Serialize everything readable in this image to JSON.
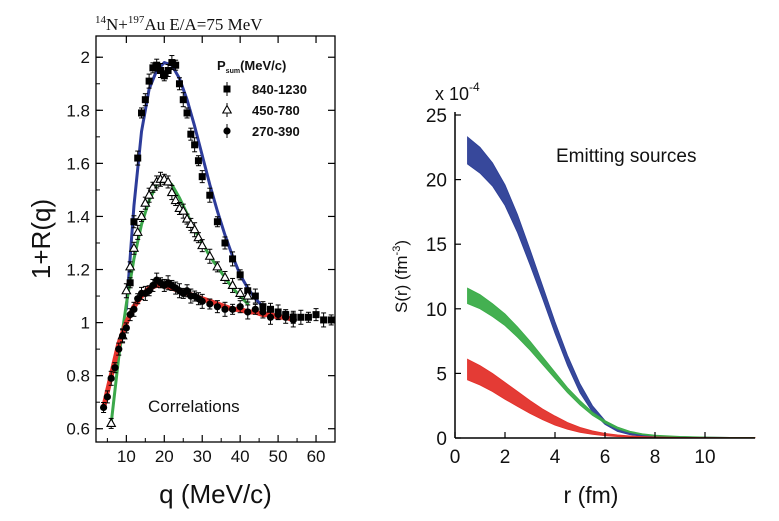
{
  "chart_data": [
    {
      "type": "scatter",
      "panel": "left",
      "title": "14N+197Au E/A=75 MeV",
      "title_parts": {
        "a1": "14",
        "n": "N+",
        "a2": "197",
        "rest": "Au E/A=75 MeV"
      },
      "annotation": "Correlations",
      "xlabel": "q (MeV/c)",
      "ylabel": "1+R(q)",
      "xlim": [
        2,
        65
      ],
      "ylim": [
        0.55,
        2.08
      ],
      "xticks": [
        10,
        20,
        30,
        40,
        50,
        60
      ],
      "yticks": [
        0.6,
        0.8,
        1,
        1.2,
        1.4,
        1.6,
        1.8,
        2
      ],
      "ytick_labels": [
        "0.6",
        "0.8",
        "1",
        "1.2",
        "1.4",
        "1.6",
        "1.8",
        "2"
      ],
      "legend": {
        "title_main": "P",
        "title_sub": "sum",
        "title_rest": "(MeV/c)",
        "position": "top-right"
      },
      "series": [
        {
          "name": "840-1230",
          "marker": "filled-square",
          "fit_color": "#2d3c9a",
          "x": [
            11,
            12,
            13,
            14,
            15,
            16,
            17,
            18,
            19,
            20,
            21,
            22,
            23,
            24,
            25,
            26,
            27,
            28,
            29,
            30,
            32,
            34,
            36,
            38,
            40,
            42,
            44,
            46,
            48,
            50,
            52,
            54,
            56,
            58,
            60,
            62,
            64
          ],
          "y": [
            1.15,
            1.38,
            1.62,
            1.79,
            1.84,
            1.91,
            1.96,
            1.97,
            1.95,
            1.93,
            1.95,
            1.98,
            1.97,
            1.9,
            1.84,
            1.79,
            1.71,
            1.67,
            1.61,
            1.55,
            1.48,
            1.38,
            1.3,
            1.24,
            1.18,
            1.12,
            1.1,
            1.06,
            1.05,
            1.04,
            1.03,
            1.02,
            1.02,
            1.02,
            1.03,
            1.01,
            1.01
          ],
          "fit_x": [
            10,
            12,
            14,
            16,
            18,
            20,
            22,
            24,
            26,
            28,
            30,
            32,
            34,
            36,
            38,
            40,
            42,
            44,
            46
          ],
          "fit_y": [
            1.05,
            1.44,
            1.72,
            1.88,
            1.95,
            1.98,
            1.97,
            1.92,
            1.84,
            1.74,
            1.63,
            1.52,
            1.42,
            1.33,
            1.25,
            1.18,
            1.13,
            1.09,
            1.06
          ]
        },
        {
          "name": "450-780",
          "marker": "open-triangle",
          "fit_color": "#3ba84a",
          "x": [
            6,
            9,
            10,
            11,
            12,
            13,
            14,
            15,
            16,
            17,
            18,
            19,
            20,
            21,
            22,
            23,
            24,
            25,
            26,
            27,
            28,
            29,
            30,
            32,
            34,
            36,
            38,
            40,
            42
          ],
          "y": [
            0.62,
            0.95,
            1.12,
            1.21,
            1.28,
            1.34,
            1.4,
            1.45,
            1.48,
            1.51,
            1.53,
            1.54,
            1.54,
            1.53,
            1.49,
            1.46,
            1.43,
            1.42,
            1.39,
            1.37,
            1.35,
            1.32,
            1.29,
            1.25,
            1.21,
            1.17,
            1.14,
            1.11,
            1.1
          ],
          "fit_x": [
            6,
            8,
            10,
            12,
            14,
            16,
            18,
            20,
            22,
            24,
            26,
            28,
            30,
            32,
            34,
            36,
            38,
            40,
            42
          ],
          "fit_y": [
            0.62,
            0.87,
            1.07,
            1.24,
            1.37,
            1.46,
            1.52,
            1.54,
            1.52,
            1.47,
            1.41,
            1.35,
            1.3,
            1.25,
            1.21,
            1.17,
            1.13,
            1.1,
            1.07
          ]
        },
        {
          "name": "270-390",
          "marker": "filled-circle",
          "fit_color": "#e8322c",
          "x": [
            4,
            5,
            6,
            7,
            8,
            9,
            10,
            11,
            12,
            13,
            14,
            15,
            16,
            17,
            18,
            19,
            20,
            21,
            22,
            23,
            24,
            25,
            26,
            27,
            28,
            29,
            30,
            32,
            34,
            36,
            38,
            40,
            42,
            44,
            46,
            48,
            50,
            52,
            54
          ],
          "y": [
            0.68,
            0.72,
            0.79,
            0.83,
            0.9,
            0.95,
            0.98,
            1.03,
            1.05,
            1.09,
            1.11,
            1.11,
            1.12,
            1.14,
            1.16,
            1.15,
            1.14,
            1.15,
            1.14,
            1.13,
            1.12,
            1.11,
            1.12,
            1.1,
            1.1,
            1.09,
            1.08,
            1.07,
            1.06,
            1.05,
            1.05,
            1.06,
            1.04,
            1.05,
            1.04,
            1.02,
            1.03,
            1.02,
            1.01
          ],
          "fit_x": [
            4,
            6,
            8,
            10,
            12,
            14,
            16,
            18,
            20,
            22,
            24,
            26,
            28,
            30,
            32,
            34,
            36,
            38,
            40,
            42,
            44,
            46,
            48,
            50,
            52,
            54
          ],
          "fit_y": [
            0.68,
            0.8,
            0.92,
            1.0,
            1.06,
            1.1,
            1.13,
            1.14,
            1.14,
            1.13,
            1.12,
            1.11,
            1.1,
            1.09,
            1.08,
            1.07,
            1.06,
            1.05,
            1.05,
            1.04,
            1.04,
            1.03,
            1.03,
            1.02,
            1.02,
            1.01
          ]
        }
      ]
    },
    {
      "type": "area",
      "panel": "right",
      "annotation": "Emitting sources",
      "scale_label": "x 10",
      "scale_exp": "-4",
      "xlabel": "r (fm)",
      "ylabel_main": "S(r) (fm",
      "ylabel_exp": "-3",
      "ylabel_close": ")",
      "xlim": [
        0,
        12
      ],
      "ylim": [
        0,
        25
      ],
      "xticks": [
        0,
        2,
        4,
        6,
        8,
        10
      ],
      "yticks": [
        0,
        5,
        10,
        15,
        20,
        25
      ],
      "series": [
        {
          "name": "840-1230",
          "color": "#2c3e96",
          "r": [
            0.5,
            1,
            1.5,
            2,
            2.5,
            3,
            3.5,
            4,
            4.5,
            5,
            5.5,
            6,
            6.5,
            7,
            7.5,
            8,
            9,
            10,
            11,
            12
          ],
          "upper": [
            23.3,
            22.5,
            21.3,
            19.6,
            17.3,
            14.6,
            11.8,
            9.0,
            6.4,
            4.2,
            2.5,
            1.35,
            0.7,
            0.38,
            0.22,
            0.15,
            0.1,
            0.07,
            0.05,
            0.05
          ],
          "lower": [
            21.2,
            20.5,
            19.5,
            18.0,
            15.9,
            13.4,
            10.8,
            8.1,
            5.6,
            3.5,
            2.0,
            1.05,
            0.5,
            0.25,
            0.13,
            0.08,
            0.05,
            0.03,
            0.02,
            0.02
          ]
        },
        {
          "name": "450-780",
          "color": "#3aac48",
          "r": [
            0.5,
            1,
            1.5,
            2,
            2.5,
            3,
            3.5,
            4,
            4.5,
            5,
            5.5,
            6,
            6.5,
            7,
            7.5,
            8,
            9,
            10,
            11,
            12
          ],
          "upper": [
            11.6,
            11.1,
            10.4,
            9.6,
            8.6,
            7.5,
            6.3,
            5.1,
            3.9,
            2.9,
            2.0,
            1.35,
            0.85,
            0.52,
            0.33,
            0.22,
            0.12,
            0.08,
            0.05,
            0.05
          ],
          "lower": [
            10.4,
            10.0,
            9.4,
            8.7,
            7.8,
            6.8,
            5.7,
            4.6,
            3.5,
            2.55,
            1.75,
            1.15,
            0.7,
            0.42,
            0.25,
            0.15,
            0.08,
            0.05,
            0.03,
            0.03
          ]
        },
        {
          "name": "270-390",
          "color": "#e3302a",
          "r": [
            0.5,
            1,
            1.5,
            2,
            2.5,
            3,
            3.5,
            4,
            4.5,
            5,
            5.5,
            6,
            6.5,
            7,
            7.5,
            8,
            9,
            10,
            11,
            12
          ],
          "upper": [
            6.1,
            5.6,
            5.0,
            4.3,
            3.6,
            2.9,
            2.25,
            1.7,
            1.2,
            0.82,
            0.55,
            0.36,
            0.24,
            0.16,
            0.11,
            0.08,
            0.05,
            0.04,
            0.03,
            0.03
          ],
          "lower": [
            4.5,
            4.1,
            3.6,
            3.0,
            2.45,
            1.9,
            1.42,
            1.0,
            0.68,
            0.44,
            0.28,
            0.18,
            0.11,
            0.07,
            0.05,
            0.03,
            0.02,
            0.01,
            0.01,
            0.01
          ]
        }
      ]
    }
  ]
}
